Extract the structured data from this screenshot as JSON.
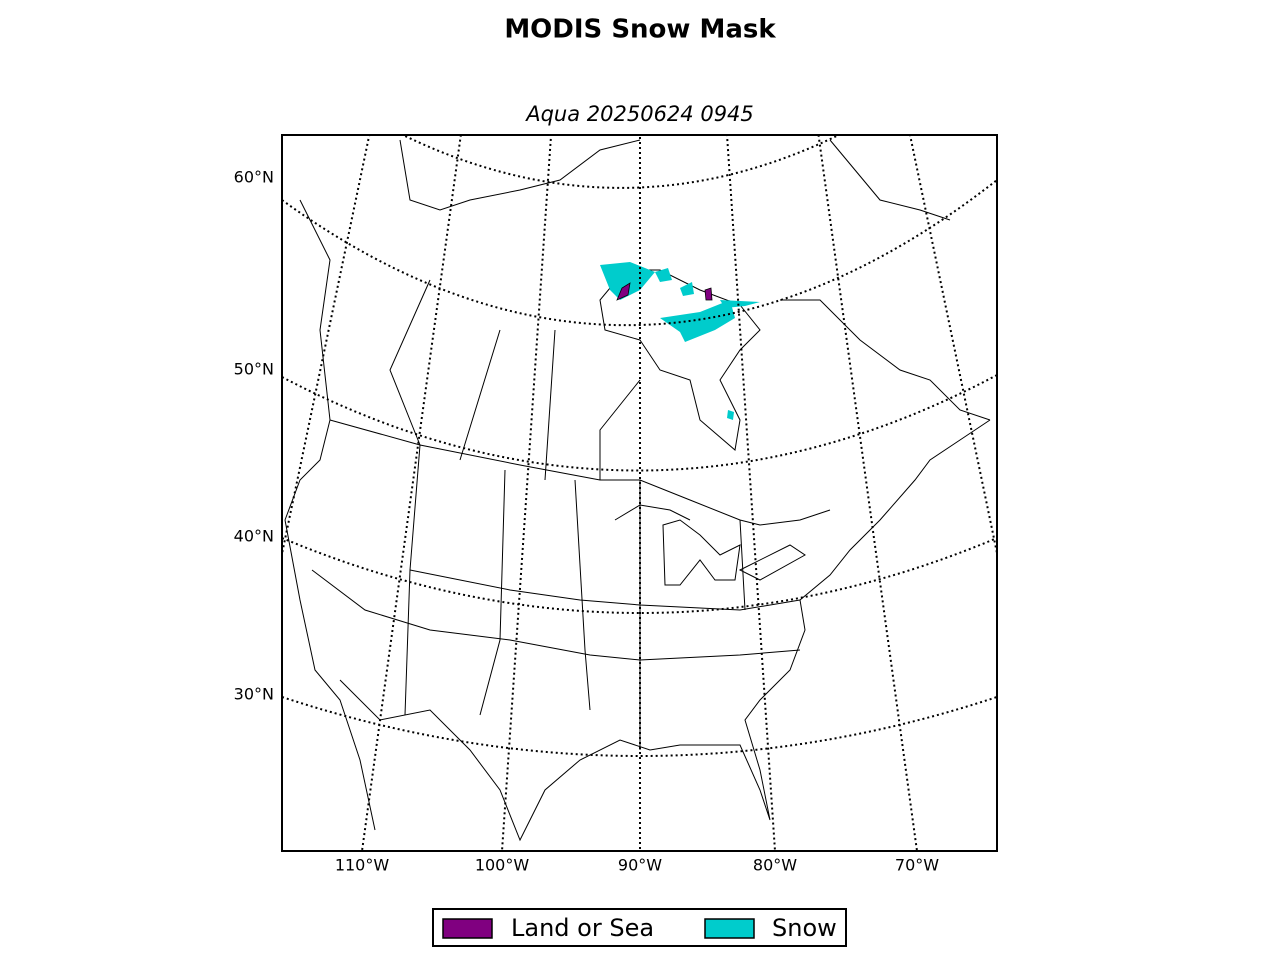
{
  "title": "MODIS Snow Mask",
  "subtitle": "Aqua 20250624 0945",
  "latitude_labels": [
    "60°N",
    "50°N",
    "40°N",
    "30°N"
  ],
  "longitude_labels": [
    "110°W",
    "100°W",
    "90°W",
    "80°W",
    "70°W"
  ],
  "legend": [
    {
      "label": "Land or Sea",
      "color": "#800080"
    },
    {
      "label": "Snow",
      "color": "#00cccc"
    }
  ]
}
